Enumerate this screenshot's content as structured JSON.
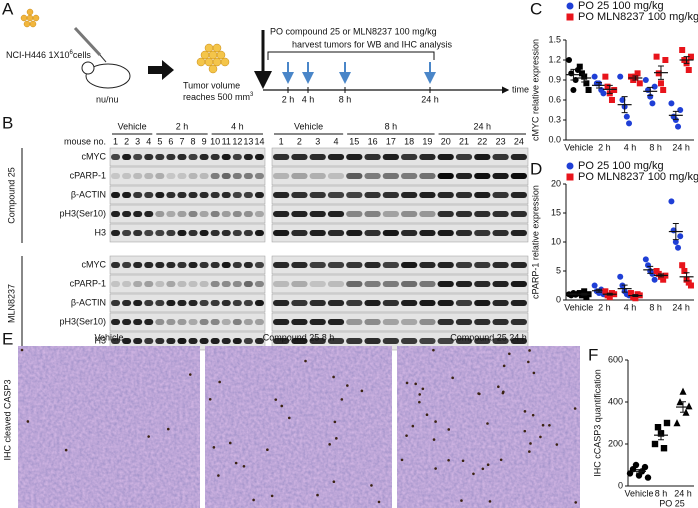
{
  "panel_labels": [
    "A",
    "B",
    "C",
    "D",
    "E",
    "F"
  ],
  "schematic": {
    "cells": "NCI-H446 1X10",
    "cells_sup": "6",
    "cells_tail": "cells",
    "mouse": "nu/nu",
    "tumor_line1": "Tumor volume",
    "tumor_line2": "reaches 500 mm",
    "tumor_sup": "3",
    "treatment": "PO compound 25 or MLN8237 100 mg/kg",
    "harvest": "harvest tumors for WB and IHC analysis",
    "timepoints": [
      "2 h",
      "4 h",
      "8 h",
      "24 h"
    ],
    "time_label": "time"
  },
  "blot": {
    "mouse_label": "mouse no.",
    "groups_left": [
      "Vehicle",
      "2 h",
      "4 h"
    ],
    "groups_right": [
      "Vehicle",
      "8 h",
      "24 h"
    ],
    "mice_left": [
      1,
      2,
      3,
      4,
      5,
      6,
      7,
      8,
      9,
      10,
      11,
      12,
      13,
      14
    ],
    "mice_right": [
      1,
      2,
      3,
      4,
      15,
      16,
      17,
      18,
      19,
      20,
      21,
      22,
      23,
      24
    ],
    "treatments": [
      "Compound 25",
      "MLN8237"
    ],
    "rows": [
      "cMYC",
      "cPARP-1",
      "β-ACTIN",
      "pH3(Ser10)",
      "H3"
    ]
  },
  "ihc": {
    "y_label": "IHC cleaved CASP3",
    "panels": [
      "Vehicle",
      "Compound 25  8 h",
      "Compound 25  24 h"
    ]
  },
  "chart_data": [
    {
      "type": "dot",
      "ylabel": "cMYC relative expression",
      "categories": [
        "Vehicle",
        "2 h",
        "4 h",
        "8 h",
        "24 h"
      ],
      "ylim": [
        0,
        1.5
      ],
      "yticks": [
        {
          "value": 0,
          "label": "0.0"
        },
        {
          "value": 0.3,
          "label": "0.3"
        },
        {
          "value": 0.6,
          "label": "0.6"
        },
        {
          "value": 0.9,
          "label": "0.9"
        },
        {
          "value": 1.2,
          "label": "1.2"
        },
        {
          "value": 1.5,
          "label": "1.5"
        }
      ],
      "series": [
        {
          "name": "PO 25 100 mg/kg",
          "color": "#1f3fd6",
          "marker": "circle",
          "colors": [
            "#000000",
            "#1f3fd6",
            "#1f3fd6",
            "#1f3fd6",
            "#1f3fd6"
          ],
          "values": [
            [
              1.2,
              1.0,
              0.75,
              0.9,
              1.05
            ],
            [
              0.95,
              0.85,
              0.85,
              0.75,
              0.7
            ],
            [
              0.95,
              0.6,
              0.5,
              0.35,
              0.25
            ],
            [
              0.9,
              0.75,
              0.65,
              0.55,
              0.8
            ],
            [
              0.55,
              0.35,
              0.3,
              0.2,
              0.45
            ]
          ],
          "mean": [
            0.98,
            0.82,
            0.53,
            0.73,
            0.37
          ],
          "error": [
            0.08,
            0.04,
            0.12,
            0.06,
            0.06
          ]
        },
        {
          "name": "PO MLN8237 100 mg/kg",
          "color": "#e8141b",
          "marker": "square",
          "colors": [
            "#000000",
            "#e8141b",
            "#e8141b",
            "#e8141b",
            "#e8141b"
          ],
          "values": [
            [
              1.1,
              1.0,
              0.95,
              0.85,
              0.75
            ],
            [
              0.95,
              0.8,
              0.7,
              0.6,
              0.75
            ],
            [
              0.95,
              0.9,
              0.95,
              1.0,
              0.85
            ],
            [
              1.25,
              1.0,
              0.85,
              0.75,
              1.2
            ],
            [
              1.35,
              1.2,
              1.15,
              1.05,
              1.25
            ]
          ],
          "mean": [
            0.93,
            0.76,
            0.93,
            1.01,
            1.2
          ],
          "error": [
            0.06,
            0.06,
            0.03,
            0.1,
            0.05
          ]
        }
      ]
    },
    {
      "type": "dot",
      "ylabel": "cPARP-1 relative expression",
      "categories": [
        "Vehicle",
        "2 h",
        "4 h",
        "8 h",
        "24 h"
      ],
      "ylim": [
        0,
        20
      ],
      "yticks": [
        0,
        5,
        10,
        15,
        20
      ],
      "series": [
        {
          "name": "PO 25 100 mg/kg",
          "color": "#1f3fd6",
          "marker": "circle",
          "colors": [
            "#000000",
            "#1f3fd6",
            "#1f3fd6",
            "#1f3fd6",
            "#1f3fd6"
          ],
          "values": [
            [
              1,
              0.8,
              1.2,
              0.9,
              1.1
            ],
            [
              2.5,
              1.5,
              1.2,
              1.8,
              1
            ],
            [
              4,
              2.5,
              1.5,
              1,
              0.8
            ],
            [
              7,
              6,
              5,
              4.5,
              3.5
            ],
            [
              17,
              12,
              10,
              9,
              11
            ]
          ],
          "mean": [
            1.0,
            1.6,
            1.96,
            5.2,
            11.8
          ],
          "error": [
            0.07,
            0.26,
            0.6,
            0.6,
            1.4
          ]
        },
        {
          "name": "PO MLN8237 100 mg/kg",
          "color": "#e8141b",
          "marker": "square",
          "colors": [
            "#000000",
            "#e8141b",
            "#e8141b",
            "#e8141b",
            "#e8141b"
          ],
          "values": [
            [
              1.2,
              0.8,
              1.5,
              0.5,
              1.0
            ],
            [
              1.5,
              0.8,
              0.5,
              1.2,
              1.0
            ],
            [
              1.2,
              0.5,
              0.3,
              1.0,
              0.8
            ],
            [
              5,
              4.5,
              4,
              3.5,
              4.2
            ],
            [
              6,
              5,
              3.5,
              3,
              2.5
            ]
          ],
          "mean": [
            1.0,
            1.0,
            0.76,
            4.24,
            4.0
          ],
          "error": [
            0.17,
            0.17,
            0.16,
            0.25,
            0.7
          ]
        }
      ]
    },
    {
      "type": "dot",
      "ylabel": "IHC cCASP3 quantification",
      "xlabel": "PO 25",
      "categories": [
        "Vehicle",
        "8 h",
        "24 h"
      ],
      "ylim": [
        0,
        600
      ],
      "yticks": [
        0,
        200,
        400,
        600
      ],
      "series": [
        {
          "color": "#000000",
          "markers": [
            "circle",
            "square",
            "triangle"
          ],
          "colors": [
            "#000000",
            "#000000",
            "#000000"
          ],
          "values": [
            [
              60,
              80,
              100,
              50,
              70,
              90,
              40
            ],
            [
              200,
              280,
              250,
              180,
              300
            ],
            [
              300,
              400,
              450,
              350,
              380
            ]
          ],
          "mean": [
            70,
            242,
            376
          ],
          "error": [
            8,
            22,
            25
          ]
        }
      ]
    }
  ]
}
